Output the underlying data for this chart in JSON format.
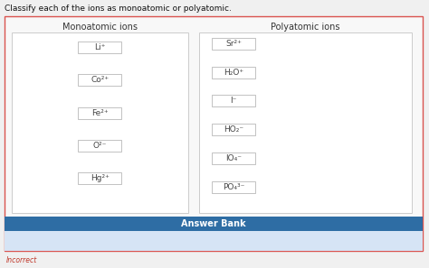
{
  "title": "Classify each of the ions as monoatomic or polyatomic.",
  "monoatomic_label": "Monoatomic ions",
  "polyatomic_label": "Polyatomic ions",
  "monoatomic_ions": [
    "Li⁺",
    "Co²⁺",
    "Fe²⁺",
    "O²⁻",
    "Hg²⁺"
  ],
  "polyatomic_ions": [
    "Sr²⁺",
    "H₂O⁺",
    "I⁻",
    "HO₂⁻",
    "IO₄⁻",
    "PO₄³⁻"
  ],
  "answer_bank_label": "Answer Bank",
  "bg_color": "#eeeeee",
  "page_bg": "#f0f0f0",
  "outer_border_color": "#d9534f",
  "inner_border_color": "#cccccc",
  "box_color": "#ffffff",
  "box_border_color": "#aaaaaa",
  "header_bg": "#2e6da4",
  "header_text_color": "#ffffff",
  "title_color": "#111111",
  "section_label_color": "#333333",
  "ion_text_color": "#444444",
  "incorrect_color": "#c0392b",
  "white_panel_color": "#f8f8f8",
  "mono_panel_color": "#f5f5f5",
  "answer_bank_bottom_color": "#d6e4f5"
}
